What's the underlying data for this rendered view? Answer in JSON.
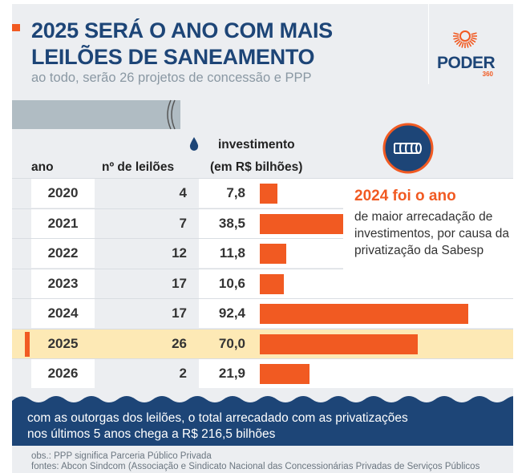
{
  "header": {
    "title_line1": "2025 SERÁ O ANO COM MAIS",
    "title_line2": "LEILÕES DE SANEAMENTO",
    "subtitle": "ao todo, serão 26 projetos de concessão e PPP",
    "logo": "PODER",
    "logo_sub": "360"
  },
  "columns": {
    "year": "ano",
    "count": "nº de leilões",
    "invest_line1": "investimento",
    "invest_line2": "(em R$ bilhões)"
  },
  "chart_data": {
    "type": "bar",
    "orientation": "horizontal",
    "categories": [
      "2020",
      "2021",
      "2022",
      "2023",
      "2024",
      "2025",
      "2026"
    ],
    "counts": [
      4,
      7,
      12,
      17,
      17,
      26,
      2
    ],
    "values": [
      7.8,
      38.5,
      11.8,
      10.6,
      92.4,
      70.0,
      21.9
    ],
    "value_labels": [
      "7,8",
      "38,5",
      "11,8",
      "10,6",
      "92,4",
      "70,0",
      "21,9"
    ],
    "highlight": "2025",
    "colors": {
      "bar": "#f15a22",
      "highlight_row": "#fde9b5"
    }
  },
  "callout": {
    "heading": "2024 foi o ano",
    "body": "de maior arrecadação de investimentos, por causa da privatização da Sabesp"
  },
  "footer": {
    "line1": "com as outorgas dos leilões, o total arrecadado com as privatizações",
    "line2": "nos últimos 5 anos chega a R$ 216,5 bilhões"
  },
  "notes": {
    "obs": "obs.: PPP significa Parceria Público Privada",
    "sources": "fontes: Abcon Sindcom (Associação e Sindicato Nacional das Concessionárias Privadas de Serviços Públicos"
  },
  "colors": {
    "navy": "#1d4577",
    "orange": "#f15a22"
  }
}
